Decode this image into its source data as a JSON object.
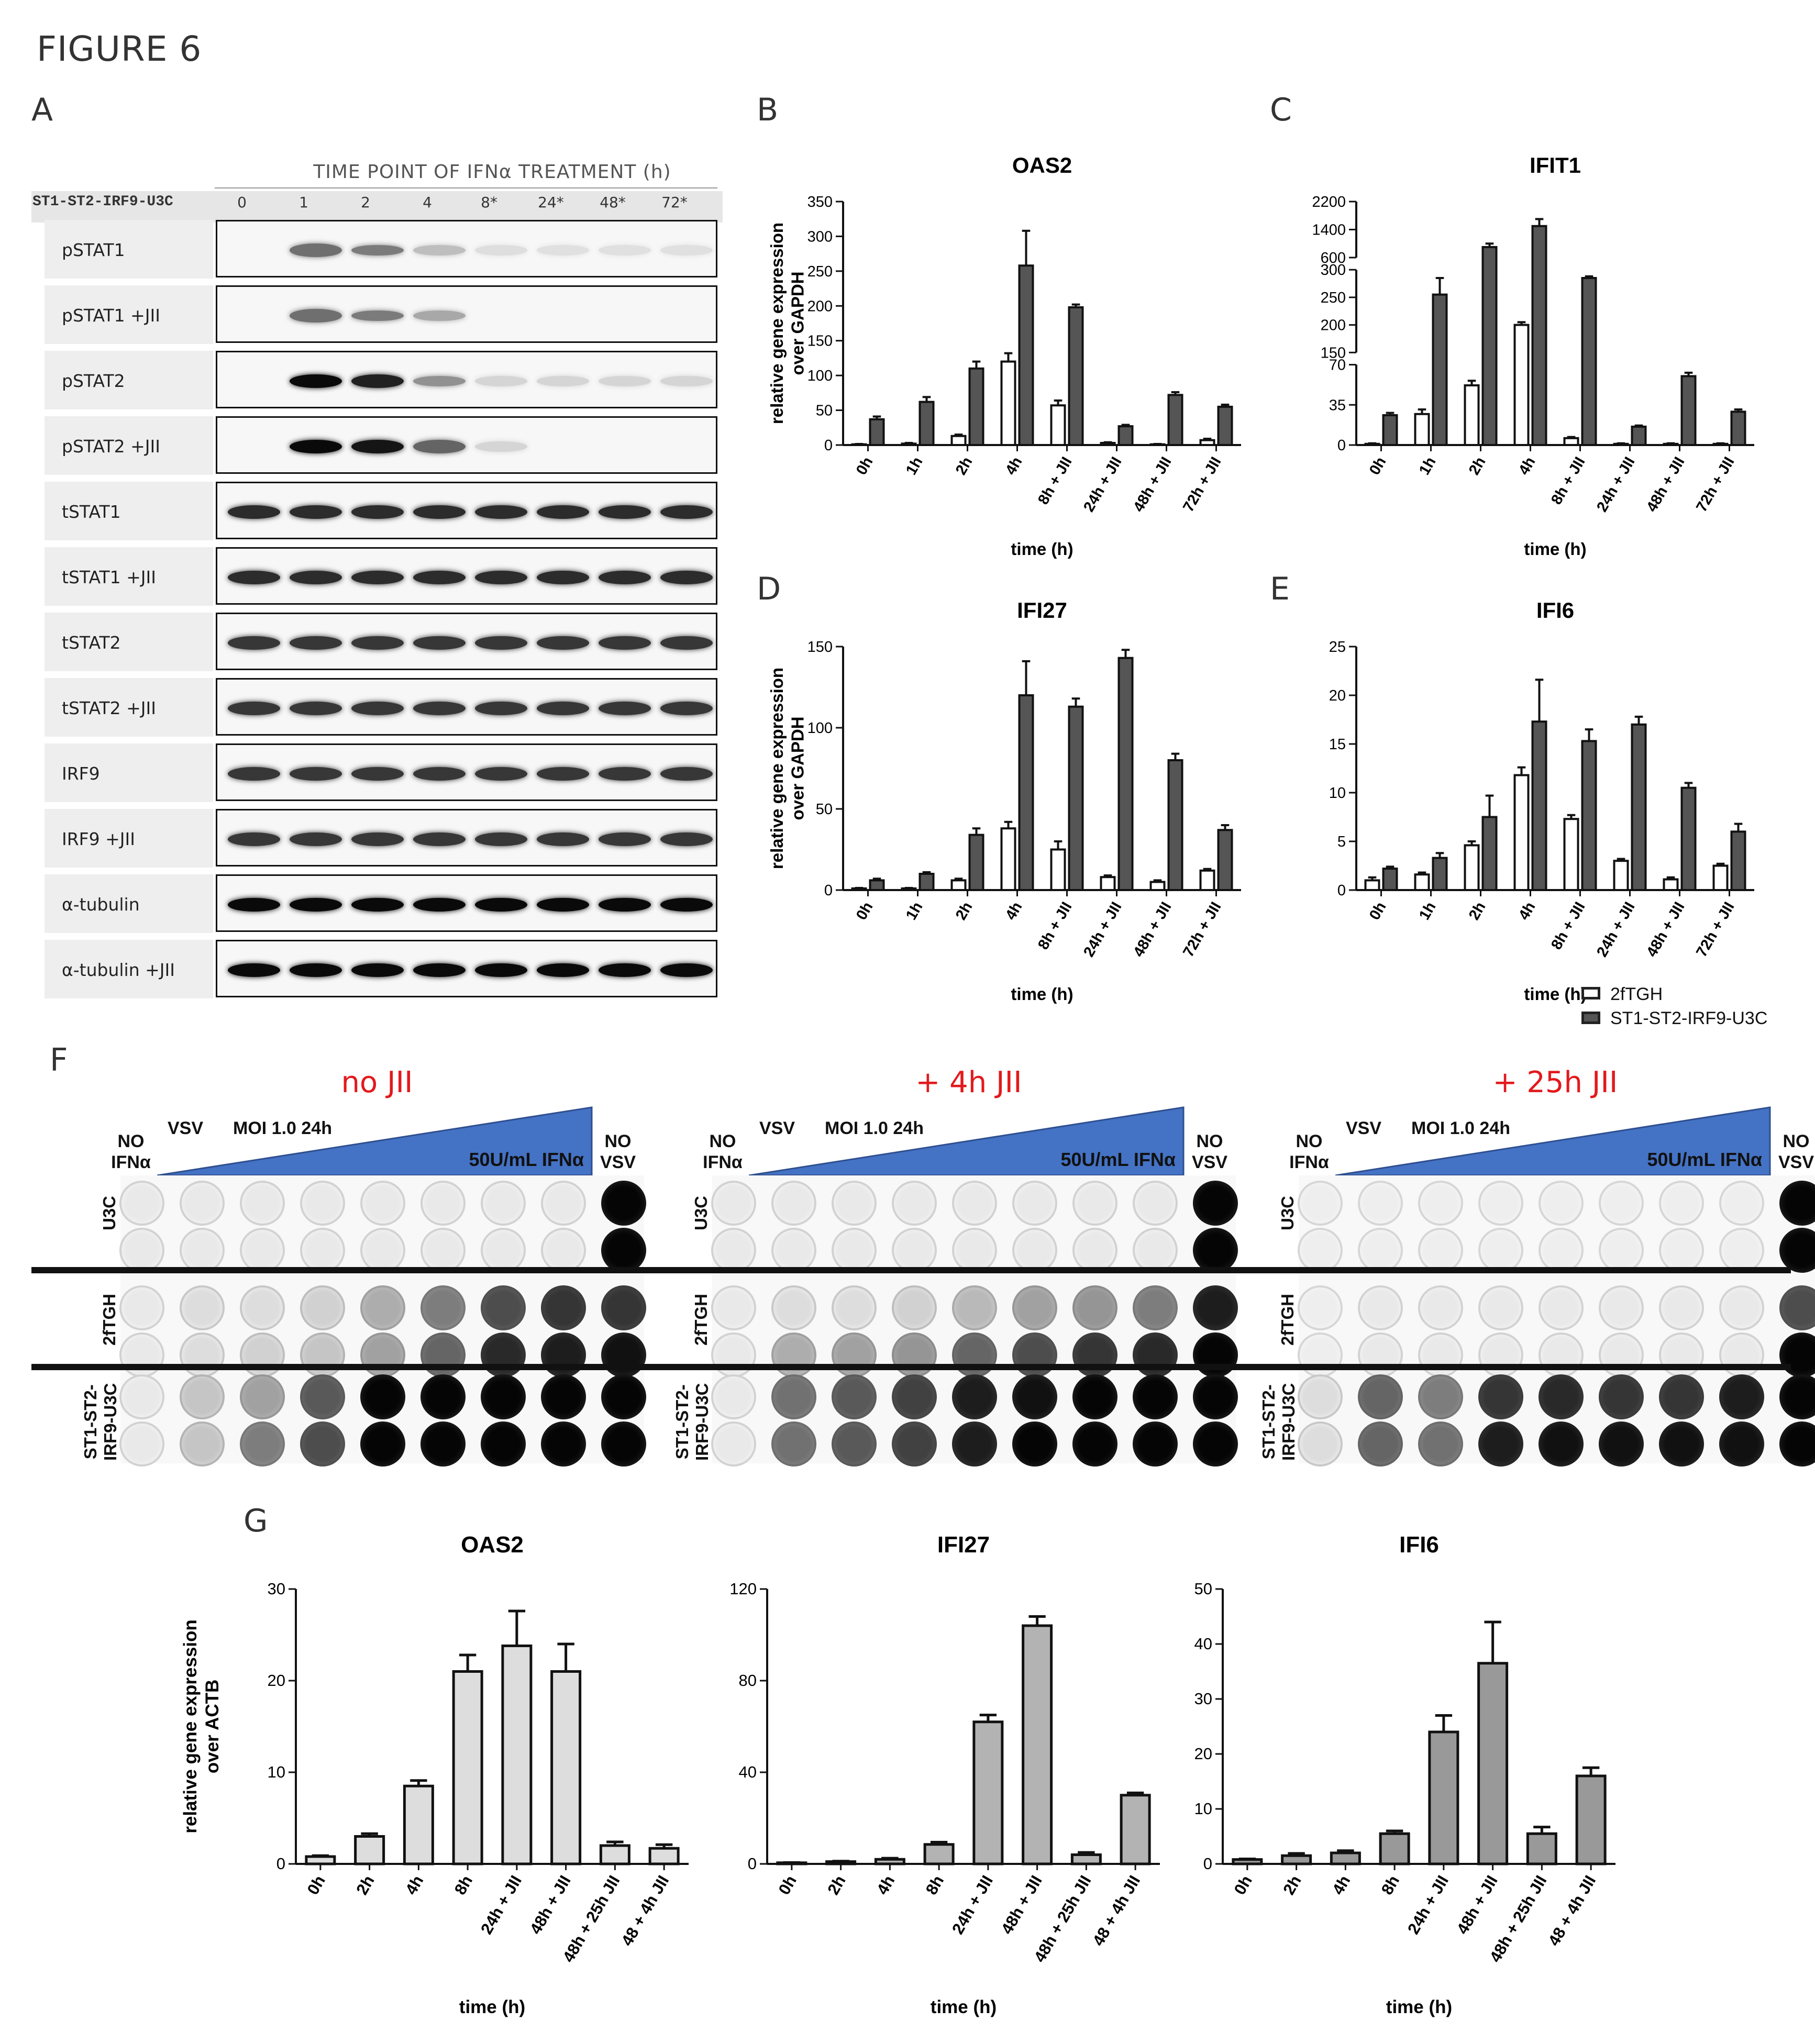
{
  "figure_title": "FIGURE 6",
  "panel_labels": {
    "A": "A",
    "B": "B",
    "C": "C",
    "D": "D",
    "E": "E",
    "F": "F",
    "G": "G"
  },
  "western_blot": {
    "title": "TIME POINT OF IFNα TREATMENT (h)",
    "cell_line": "ST1-ST2-IRF9-U3C",
    "time_points": [
      "0",
      "1",
      "2",
      "4",
      "8*",
      "24*",
      "48*",
      "72*"
    ],
    "rows": [
      {
        "label": "pSTAT1",
        "intensity": [
          0,
          0.55,
          0.5,
          0.2,
          0.06,
          0.05,
          0.05,
          0.05
        ]
      },
      {
        "label": "pSTAT1 +JII",
        "intensity": [
          0,
          0.55,
          0.5,
          0.3,
          0,
          0,
          0,
          0
        ]
      },
      {
        "label": "pSTAT2",
        "intensity": [
          0,
          1,
          0.9,
          0.4,
          0.1,
          0.1,
          0.1,
          0.1
        ]
      },
      {
        "label": "pSTAT2 +JII",
        "intensity": [
          0,
          1,
          0.95,
          0.6,
          0.1,
          0,
          0,
          0
        ]
      },
      {
        "label": "tSTAT1",
        "intensity": [
          0.85,
          0.85,
          0.85,
          0.85,
          0.85,
          0.85,
          0.85,
          0.85
        ]
      },
      {
        "label": "tSTAT1 +JII",
        "intensity": [
          0.85,
          0.85,
          0.85,
          0.85,
          0.85,
          0.85,
          0.85,
          0.85
        ]
      },
      {
        "label": "tSTAT2",
        "intensity": [
          0.8,
          0.8,
          0.8,
          0.8,
          0.8,
          0.8,
          0.8,
          0.8
        ]
      },
      {
        "label": "tSTAT2 +JII",
        "intensity": [
          0.8,
          0.8,
          0.8,
          0.8,
          0.8,
          0.8,
          0.8,
          0.8
        ]
      },
      {
        "label": "IRF9",
        "intensity": [
          0.8,
          0.8,
          0.8,
          0.8,
          0.8,
          0.8,
          0.8,
          0.8
        ]
      },
      {
        "label": "IRF9 +JII",
        "intensity": [
          0.8,
          0.8,
          0.8,
          0.8,
          0.8,
          0.8,
          0.8,
          0.8
        ]
      },
      {
        "label": "α-tubulin",
        "intensity": [
          1,
          1,
          1,
          1,
          1,
          1,
          1,
          1
        ]
      },
      {
        "label": "α-tubulin +JII",
        "intensity": [
          1,
          1,
          1,
          1,
          1,
          1,
          1,
          1
        ]
      }
    ]
  },
  "legend": {
    "series1": "2fTGH",
    "series2": "ST1-ST2-IRF9-U3C",
    "colors": {
      "series1": "#ffffff",
      "series2": "#555555"
    }
  },
  "chart_data": [
    {
      "panel": "B",
      "type": "bar",
      "title": "OAS2",
      "ylabel": "relative gene expression over GAPDH",
      "xlabel": "time (h)",
      "categories": [
        "0h",
        "1h",
        "2h",
        "4h",
        "8h + JII",
        "24h + JII",
        "48h + JII",
        "72h + JII"
      ],
      "ylim": [
        0,
        350
      ],
      "yticks": [
        0,
        50,
        100,
        150,
        200,
        250,
        300,
        350
      ],
      "series": [
        {
          "name": "2fTGH",
          "values": [
            1,
            2,
            13,
            120,
            57,
            3,
            1,
            7
          ],
          "errors": [
            0.5,
            1,
            2,
            12,
            7,
            1,
            0.5,
            2
          ]
        },
        {
          "name": "ST1-ST2-IRF9-U3C",
          "values": [
            37,
            62,
            110,
            258,
            198,
            27,
            72,
            55
          ],
          "errors": [
            4,
            7,
            10,
            50,
            4,
            2,
            4,
            3
          ]
        }
      ]
    },
    {
      "panel": "C",
      "type": "bar",
      "title": "IFIT1",
      "ylabel": "",
      "xlabel": "time (h)",
      "broken_axis": true,
      "categories": [
        "0h",
        "1h",
        "2h",
        "4h",
        "8h + JII",
        "24h + JII",
        "48h + JII",
        "72h + JII"
      ],
      "yticks": [
        0,
        35,
        70,
        150,
        200,
        250,
        300,
        600,
        1400,
        2200
      ],
      "series": [
        {
          "name": "2fTGH",
          "values": [
            1,
            27,
            52,
            200,
            6,
            1,
            1,
            1
          ],
          "errors": [
            0.5,
            4,
            4,
            5,
            1,
            0.5,
            0.5,
            0.5
          ]
        },
        {
          "name": "ST1-ST2-IRF9-U3C",
          "values": [
            26,
            255,
            900,
            1500,
            285,
            16,
            60,
            29
          ],
          "errors": [
            2,
            30,
            100,
            200,
            3,
            1,
            3,
            2
          ]
        }
      ]
    },
    {
      "panel": "D",
      "type": "bar",
      "title": "IFI27",
      "ylabel": "relative gene expression over GAPDH",
      "xlabel": "time (h)",
      "categories": [
        "0h",
        "1h",
        "2h",
        "4h",
        "8h + JII",
        "24h + JII",
        "48h + JII",
        "72h + JII"
      ],
      "ylim": [
        0,
        150
      ],
      "yticks": [
        0,
        50,
        100,
        150
      ],
      "series": [
        {
          "name": "2fTGH",
          "values": [
            1,
            1,
            6,
            38,
            25,
            8,
            5,
            12
          ],
          "errors": [
            0.3,
            0.3,
            1,
            4,
            5,
            1,
            1,
            1
          ]
        },
        {
          "name": "ST1-ST2-IRF9-U3C",
          "values": [
            6,
            10,
            34,
            120,
            113,
            143,
            80,
            37
          ],
          "errors": [
            1,
            1,
            4,
            21,
            5,
            5,
            4,
            3
          ]
        }
      ]
    },
    {
      "panel": "E",
      "type": "bar",
      "title": "IFI6",
      "ylabel": "",
      "xlabel": "time (h)",
      "categories": [
        "0h",
        "1h",
        "2h",
        "4h",
        "8h + JII",
        "24h + JII",
        "48h + JII",
        "72h + JII"
      ],
      "ylim": [
        0,
        25
      ],
      "yticks": [
        0,
        5,
        10,
        15,
        20,
        25
      ],
      "series": [
        {
          "name": "2fTGH",
          "values": [
            1,
            1.6,
            4.6,
            11.8,
            7.3,
            3,
            1.1,
            2.5
          ],
          "errors": [
            0.3,
            0.2,
            0.4,
            0.8,
            0.4,
            0.2,
            0.2,
            0.2
          ]
        },
        {
          "name": "ST1-ST2-IRF9-U3C",
          "values": [
            2.2,
            3.3,
            7.5,
            17.3,
            15.3,
            17,
            10.5,
            6
          ],
          "errors": [
            0.2,
            0.5,
            2.2,
            4.3,
            1.2,
            0.8,
            0.5,
            0.8
          ]
        }
      ]
    },
    {
      "panel": "G1",
      "type": "bar",
      "title": "OAS2",
      "ylabel": "relative gene expression over ACTB",
      "xlabel": "time (h)",
      "categories": [
        "0h",
        "2h",
        "4h",
        "8h",
        "24h + JII",
        "48h + JII",
        "48h + 25h JII",
        "48 + 4h JII"
      ],
      "ylim": [
        0,
        30
      ],
      "yticks": [
        0,
        10,
        20,
        30
      ],
      "color": "#dddddd",
      "series": [
        {
          "values": [
            0.8,
            3,
            8.5,
            21,
            23.8,
            21,
            2,
            1.7
          ],
          "errors": [
            0.1,
            0.3,
            0.6,
            1.8,
            3.8,
            3,
            0.4,
            0.4
          ]
        }
      ]
    },
    {
      "panel": "G2",
      "type": "bar",
      "title": "IFI27",
      "ylabel": "",
      "xlabel": "time (h)",
      "categories": [
        "0h",
        "2h",
        "4h",
        "8h",
        "24h + JII",
        "48h + JII",
        "48h + 25h JII",
        "48 + 4h JII"
      ],
      "ylim": [
        0,
        120
      ],
      "yticks": [
        0,
        40,
        80,
        120
      ],
      "color": "#b3b3b3",
      "series": [
        {
          "values": [
            0.5,
            1,
            2,
            8.5,
            62,
            104,
            4,
            30
          ],
          "errors": [
            0.1,
            0.2,
            0.5,
            1,
            3,
            4,
            1,
            1
          ]
        }
      ]
    },
    {
      "panel": "G3",
      "type": "bar",
      "title": "IFI6",
      "ylabel": "",
      "xlabel": "time (h)",
      "categories": [
        "0h",
        "2h",
        "4h",
        "8h",
        "24h + JII",
        "48h + JII",
        "48h + 25h JII",
        "48 + 4h JII"
      ],
      "ylim": [
        0,
        50
      ],
      "yticks": [
        0,
        10,
        20,
        30,
        40,
        50
      ],
      "color": "#999999",
      "series": [
        {
          "values": [
            0.8,
            1.5,
            2,
            5.5,
            24,
            36.5,
            5.5,
            16
          ],
          "errors": [
            0.1,
            0.4,
            0.4,
            0.5,
            3,
            7.5,
            1.2,
            1.5
          ]
        }
      ]
    }
  ],
  "vsv_assay": {
    "conditions": [
      "no JII",
      "+ 4h JII",
      "+ 25h JII"
    ],
    "no_ifn": "NO IFNα",
    "no_vsv": "NO VSV",
    "vsv": "VSV",
    "moi": "MOI 1.0 24h",
    "ifn_gradient": "50U/mL IFNα",
    "rows": [
      "U3C",
      "2fTGH",
      "ST1-ST2-IRF9-U3C"
    ],
    "row_label_lines": {
      "U3C": [
        "U3C"
      ],
      "2fTGH": [
        "2fTGH"
      ],
      "ST1-ST2-IRF9-U3C": [
        "ST1-ST2-",
        "IRF9-U3C"
      ]
    },
    "well_intensity": [
      [
        [
          0.05,
          0.05,
          0.05,
          0.05,
          0.05,
          0.05,
          0.05,
          0.05,
          1
        ],
        [
          0.05,
          0.05,
          0.05,
          0.05,
          0.05,
          0.05,
          0.05,
          0.05,
          1
        ],
        [
          0.05,
          0.1,
          0.1,
          0.15,
          0.3,
          0.5,
          0.7,
          0.8,
          0.8
        ],
        [
          0.05,
          0.1,
          0.15,
          0.2,
          0.35,
          0.6,
          0.85,
          0.9,
          0.95
        ],
        [
          0.05,
          0.2,
          0.35,
          0.65,
          1,
          1,
          1,
          1,
          1
        ],
        [
          0.05,
          0.2,
          0.5,
          0.7,
          1,
          1,
          1,
          1,
          1
        ]
      ],
      [
        [
          0.05,
          0.05,
          0.05,
          0.05,
          0.05,
          0.05,
          0.05,
          0.05,
          1
        ],
        [
          0.05,
          0.05,
          0.05,
          0.05,
          0.05,
          0.05,
          0.05,
          0.05,
          1
        ],
        [
          0.05,
          0.1,
          0.1,
          0.15,
          0.25,
          0.35,
          0.4,
          0.5,
          0.9
        ],
        [
          0.05,
          0.3,
          0.35,
          0.4,
          0.6,
          0.7,
          0.8,
          0.85,
          1
        ],
        [
          0.05,
          0.55,
          0.65,
          0.75,
          0.9,
          0.95,
          1,
          1,
          1
        ],
        [
          0.05,
          0.55,
          0.65,
          0.75,
          0.9,
          1,
          1,
          1,
          1
        ]
      ],
      [
        [
          0.03,
          0.03,
          0.03,
          0.03,
          0.03,
          0.03,
          0.03,
          0.03,
          1
        ],
        [
          0.03,
          0.03,
          0.03,
          0.03,
          0.03,
          0.03,
          0.03,
          0.03,
          1
        ],
        [
          0.03,
          0.05,
          0.05,
          0.05,
          0.05,
          0.05,
          0.05,
          0.05,
          0.7
        ],
        [
          0.03,
          0.05,
          0.05,
          0.05,
          0.05,
          0.05,
          0.05,
          0.05,
          1
        ],
        [
          0.1,
          0.6,
          0.5,
          0.8,
          0.85,
          0.8,
          0.8,
          0.9,
          1
        ],
        [
          0.1,
          0.6,
          0.55,
          0.9,
          0.95,
          0.95,
          0.95,
          0.95,
          1
        ]
      ]
    ]
  }
}
